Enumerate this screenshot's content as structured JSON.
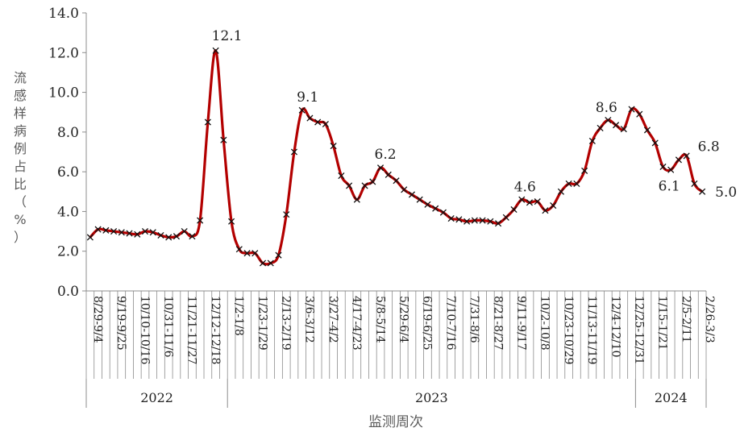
{
  "chart_data": {
    "type": "line",
    "ylabel": "流感样病例占比（%）",
    "xlabel": "监测周次",
    "ylim": [
      0,
      14
    ],
    "yticks": [
      "0.0",
      "2.0",
      "4.0",
      "6.0",
      "8.0",
      "10.0",
      "12.0",
      "14.0"
    ],
    "line_color": "#b30000",
    "marker": "x",
    "grid": false,
    "tick_labels": [
      "8/29-9/4",
      "9/19-9/25",
      "10/10-10/16",
      "10/31-11/6",
      "11/21-11/27",
      "12/12-12/18",
      "1/2-1/8",
      "1/23-1/29",
      "2/13-2/19",
      "3/6-3/12",
      "3/27-4/2",
      "4/17-4/23",
      "5/8-5/14",
      "5/29-6/4",
      "6/19-6/25",
      "7/10-7/16",
      "7/31-8/6",
      "8/21-8/27",
      "9/11-9/17",
      "10/2-10/8",
      "10/23-10/29",
      "11/13-11/19",
      "12/4-12/10",
      "12/25-12/31",
      "1/15-1/21",
      "2/5-2/11",
      "2/26-3/3"
    ],
    "years": [
      {
        "label": "2022",
        "weeks": 18
      },
      {
        "label": "2023",
        "weeks": 52
      },
      {
        "label": "2024",
        "weeks": 9
      }
    ],
    "values": [
      2.7,
      3.1,
      3.05,
      3.0,
      2.95,
      2.9,
      2.85,
      3.0,
      2.95,
      2.8,
      2.7,
      2.75,
      3.0,
      2.75,
      3.55,
      8.5,
      12.1,
      7.6,
      3.5,
      2.1,
      1.9,
      1.9,
      1.4,
      1.4,
      1.8,
      3.85,
      7.0,
      9.1,
      8.7,
      8.5,
      8.4,
      7.3,
      5.8,
      5.3,
      4.6,
      5.3,
      5.5,
      6.2,
      5.85,
      5.55,
      5.1,
      4.85,
      4.6,
      4.35,
      4.15,
      3.95,
      3.65,
      3.6,
      3.5,
      3.55,
      3.55,
      3.5,
      3.4,
      3.7,
      4.1,
      4.6,
      4.45,
      4.5,
      4.05,
      4.3,
      5.0,
      5.4,
      5.4,
      6.05,
      7.55,
      8.2,
      8.6,
      8.35,
      8.15,
      9.15,
      8.9,
      8.1,
      7.45,
      6.25,
      6.1,
      6.6,
      6.8,
      5.4,
      5.0
    ],
    "data_labels": [
      {
        "week": 16,
        "text": "12.1"
      },
      {
        "week": 27,
        "text": "9.1"
      },
      {
        "week": 37,
        "text": "6.2"
      },
      {
        "week": 55,
        "text": "4.6"
      },
      {
        "week": 66,
        "text": "8.6"
      },
      {
        "week": 74,
        "text": "6.1"
      },
      {
        "week": 76,
        "text": "6.8"
      },
      {
        "week": 78,
        "text": "5.0"
      }
    ]
  }
}
